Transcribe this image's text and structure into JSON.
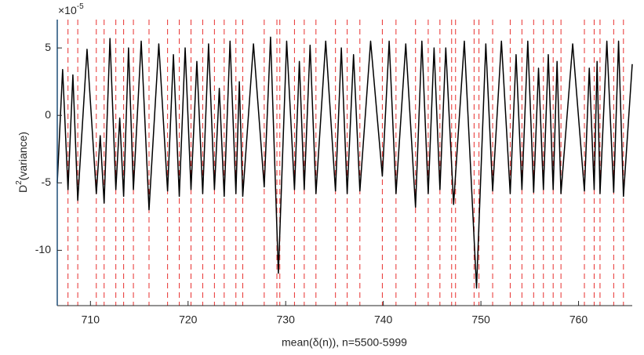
{
  "chart_data": {
    "type": "line",
    "xlabel": "mean(δ(n)), n=5500-5999",
    "ylabel": {
      "base": "D",
      "sup": "2",
      "rest": "(variance)"
    },
    "y_exponent": {
      "base": "×10",
      "sup": "-5"
    },
    "xlim": [
      706.6,
      765.5
    ],
    "ylim": [
      -14.1,
      7.1
    ],
    "xticks": [
      710,
      720,
      730,
      740,
      750,
      760
    ],
    "yticks": [
      -10,
      -5,
      0,
      5
    ],
    "line_color": "#000000",
    "vline_color": "#e8302f",
    "vlines": [
      707.7,
      708.7,
      710.6,
      711.4,
      712.6,
      713.4,
      714.4,
      716.0,
      717.9,
      719.1,
      720.3,
      721.5,
      722.7,
      723.7,
      724.9,
      725.6,
      727.8,
      729.1,
      729.4,
      730.9,
      731.9,
      733.1,
      735.1,
      736.3,
      737.6,
      739.9,
      741.3,
      743.3,
      744.6,
      745.8,
      747.0,
      747.4,
      749.3,
      749.8,
      751.2,
      753.0,
      754.2,
      755.4,
      756.4,
      757.4,
      758.2,
      760.6,
      761.6,
      762.2,
      763.6,
      764.6
    ],
    "x": [
      706.6,
      707.15,
      707.7,
      708.2,
      708.7,
      709.65,
      710.6,
      711.0,
      711.4,
      712.0,
      712.6,
      713.0,
      713.4,
      713.9,
      714.4,
      715.2,
      716.0,
      717.0,
      717.9,
      718.5,
      719.1,
      719.7,
      720.3,
      720.9,
      721.5,
      722.1,
      722.7,
      723.2,
      723.7,
      724.3,
      724.9,
      725.25,
      725.6,
      726.7,
      727.8,
      728.45,
      729.25,
      730.1,
      730.9,
      731.4,
      731.9,
      732.5,
      733.1,
      734.1,
      735.1,
      735.7,
      736.3,
      736.95,
      737.6,
      738.7,
      739.9,
      740.6,
      741.3,
      742.3,
      743.3,
      743.95,
      744.6,
      745.2,
      745.8,
      746.4,
      747.2,
      748.3,
      749.55,
      750.5,
      751.2,
      752.1,
      753.0,
      753.6,
      754.2,
      754.8,
      755.4,
      755.9,
      756.4,
      756.9,
      757.4,
      757.8,
      758.2,
      759.4,
      760.6,
      761.1,
      761.6,
      761.9,
      762.2,
      762.9,
      763.6,
      764.1,
      764.6,
      765.5
    ],
    "values": [
      -5,
      3.4,
      -5.5,
      3.0,
      -6.3,
      4.9,
      -5.8,
      -1.5,
      -6.5,
      5.7,
      -5.5,
      -0.2,
      -6.0,
      5.0,
      -5.5,
      5.5,
      -7.0,
      5.3,
      -5.6,
      4.5,
      -6.0,
      5.0,
      -5.5,
      4.0,
      -5.8,
      5.3,
      -5.5,
      2.0,
      -6.0,
      5.5,
      -5.8,
      2.5,
      -6.0,
      5.3,
      -5.3,
      5.8,
      -11.7,
      5.5,
      -5.5,
      4.0,
      -5.5,
      5.2,
      -5.8,
      5.5,
      -5.6,
      5.0,
      -5.8,
      4.5,
      -5.6,
      5.5,
      -4.5,
      5.5,
      -5.8,
      5.3,
      -6.8,
      5.5,
      -5.8,
      5.0,
      -5.5,
      5.0,
      -6.6,
      5.5,
      -12.8,
      5.3,
      -5.6,
      5.5,
      -5.8,
      4.5,
      -5.5,
      5.5,
      -5.7,
      3.5,
      -5.5,
      4.5,
      -5.5,
      4.0,
      -5.8,
      5.3,
      -5.6,
      3.5,
      -5.5,
      4.0,
      -5.8,
      5.5,
      -5.7,
      5.5,
      -6.0,
      3.8
    ]
  }
}
